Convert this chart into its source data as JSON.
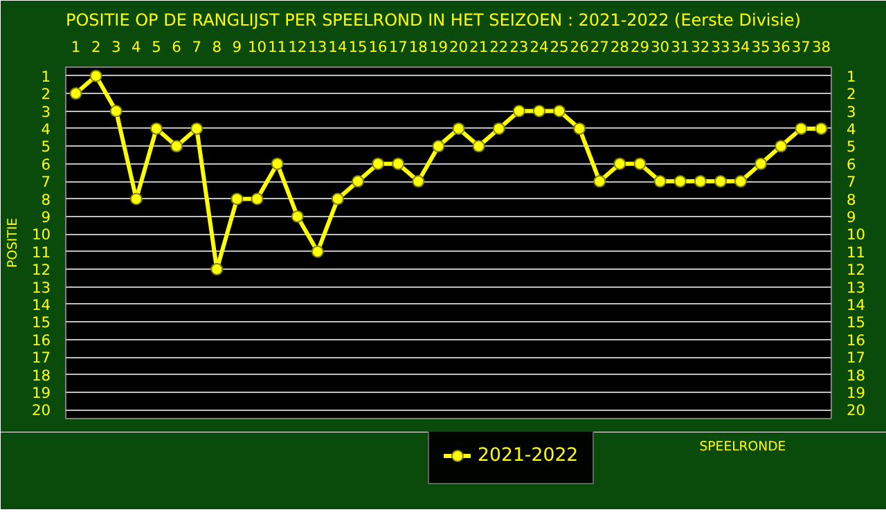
{
  "chart_data": {
    "type": "line",
    "title": "POSITIE OP DE RANGLIJST PER  SPEELROND IN HET SEIZOEN : 2021-2022 (Eerste Divisie)",
    "xlabel": "SPEELRONDE",
    "ylabel": "POSITIE",
    "x": [
      1,
      2,
      3,
      4,
      5,
      6,
      7,
      8,
      9,
      10,
      11,
      12,
      13,
      14,
      15,
      16,
      17,
      18,
      19,
      20,
      21,
      22,
      23,
      24,
      25,
      26,
      27,
      28,
      29,
      30,
      31,
      32,
      33,
      34,
      35,
      36,
      37,
      38
    ],
    "series": [
      {
        "name": "2021-2022",
        "color": "#ffff00",
        "values": [
          2,
          1,
          3,
          8,
          4,
          5,
          4,
          12,
          8,
          8,
          6,
          9,
          11,
          8,
          7,
          6,
          6,
          7,
          5,
          4,
          5,
          4,
          3,
          3,
          3,
          4,
          7,
          6,
          6,
          7,
          7,
          7,
          7,
          7,
          6,
          5,
          4,
          4
        ]
      }
    ],
    "xlim": [
      0.5,
      38.5
    ],
    "xticks": [
      1,
      2,
      3,
      4,
      5,
      6,
      7,
      8,
      9,
      10,
      11,
      12,
      13,
      14,
      15,
      16,
      17,
      18,
      19,
      20,
      21,
      22,
      23,
      24,
      25,
      26,
      27,
      28,
      29,
      30,
      31,
      32,
      33,
      34,
      35,
      36,
      37,
      38
    ],
    "ylim": [
      20.5,
      0.5
    ],
    "yticks": [
      1,
      2,
      3,
      4,
      5,
      6,
      7,
      8,
      9,
      10,
      11,
      12,
      13,
      14,
      15,
      16,
      17,
      18,
      19,
      20
    ],
    "y2lim": [
      20.5,
      0.5
    ],
    "y2ticks": [
      1,
      2,
      3,
      4,
      5,
      6,
      7,
      8,
      9,
      10,
      11,
      12,
      13,
      14,
      15,
      16,
      17,
      18,
      19,
      20
    ],
    "grid": "y",
    "legend": "bottom",
    "marker": "circle",
    "line_style": "solid"
  }
}
